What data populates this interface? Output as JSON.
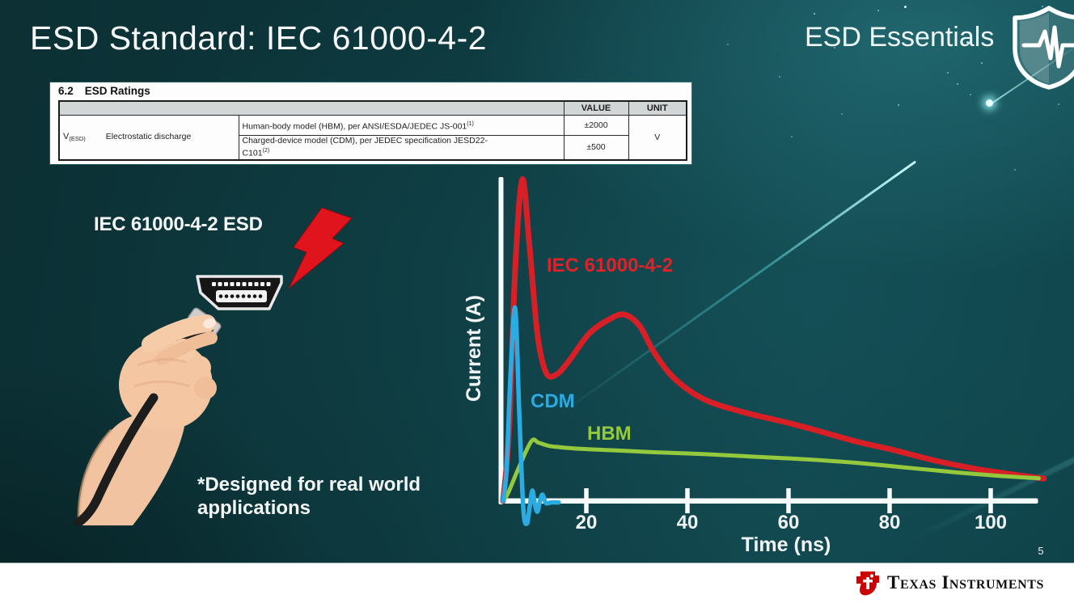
{
  "slide": {
    "title": "ESD Standard: IEC 61000-4-2",
    "badge_label": "ESD Essentials",
    "page_number": "5"
  },
  "colors": {
    "background_teal": "#0c363b",
    "accent_red": "#d81f26",
    "accent_cyan": "#2aabe2",
    "accent_green": "#95c93d",
    "footer_background": "#ffffff",
    "ti_logo_red": "#cc0000",
    "text_white": "#f4f7f7"
  },
  "ratings_table": {
    "section_number": "6.2",
    "section_title": "ESD Ratings",
    "columns": [
      "VALUE",
      "UNIT"
    ],
    "parameter": {
      "symbol": "V",
      "symbol_sub": "(ESD)",
      "name": "Electrostatic discharge"
    },
    "rows": [
      {
        "description": "Human-body model (HBM), per ANSI/ESDA/JEDEC JS-001",
        "description_sup": "(1)",
        "value": "±2000"
      },
      {
        "description": "Charged-device model (CDM), per JEDEC specification JESD22-",
        "description_line2": "C101",
        "description_sup": "(2)",
        "value": "±500"
      }
    ],
    "unit": "V"
  },
  "illustration": {
    "label": "IEC 61000-4-2 ESD",
    "footnote_line1": "*Designed for real world",
    "footnote_line2": "applications"
  },
  "chart_data": {
    "type": "line",
    "title": "",
    "xlabel": "Time (ns)",
    "ylabel": "Current (A)",
    "x_ticks": [
      20,
      40,
      60,
      80,
      100
    ],
    "xlim": [
      0,
      110
    ],
    "ylim": [
      -0.08,
      1.05
    ],
    "grid": false,
    "legend_position": "labels-on-curves",
    "y_units_note": "relative amplitude, IEC peak = 1.0",
    "series": [
      {
        "name": "IEC 61000-4-2",
        "color": "#d81f26",
        "x": [
          0,
          1.2,
          2.4,
          3.8,
          5.2,
          6.8,
          8.5,
          10.5,
          13,
          17,
          21,
          24,
          27,
          30,
          34,
          40,
          48,
          56,
          62,
          70,
          77,
          85,
          93,
          100,
          107
        ],
        "y": [
          0,
          0.22,
          0.72,
          1.0,
          0.8,
          0.52,
          0.4,
          0.393,
          0.435,
          0.52,
          0.565,
          0.58,
          0.545,
          0.46,
          0.38,
          0.315,
          0.275,
          0.245,
          0.22,
          0.185,
          0.16,
          0.128,
          0.102,
          0.085,
          0.07
        ]
      },
      {
        "name": "CDM",
        "color": "#2aabe2",
        "x": [
          0,
          0.7,
          1.5,
          2.4,
          3.2,
          4.0,
          4.7,
          5.3,
          5.8,
          6.3,
          6.8,
          7.3,
          7.8,
          8.5,
          9.5,
          11
        ],
        "y": [
          0,
          0.1,
          0.4,
          0.6,
          0.28,
          -0.02,
          -0.07,
          -0.015,
          0.033,
          -0.01,
          -0.033,
          0.0,
          0.02,
          -0.006,
          -0.004,
          -0.004
        ]
      },
      {
        "name": "HBM",
        "color": "#95c93d",
        "x": [
          0,
          1,
          3,
          5.6,
          7,
          9,
          11,
          15,
          22,
          30,
          40,
          50,
          60,
          70,
          80,
          90,
          98,
          106
        ],
        "y": [
          0,
          0.025,
          0.1,
          0.186,
          0.182,
          0.172,
          0.168,
          0.163,
          0.158,
          0.152,
          0.146,
          0.138,
          0.13,
          0.119,
          0.104,
          0.089,
          0.079,
          0.071
        ]
      }
    ]
  },
  "footer": {
    "brand": "Texas Instruments"
  }
}
